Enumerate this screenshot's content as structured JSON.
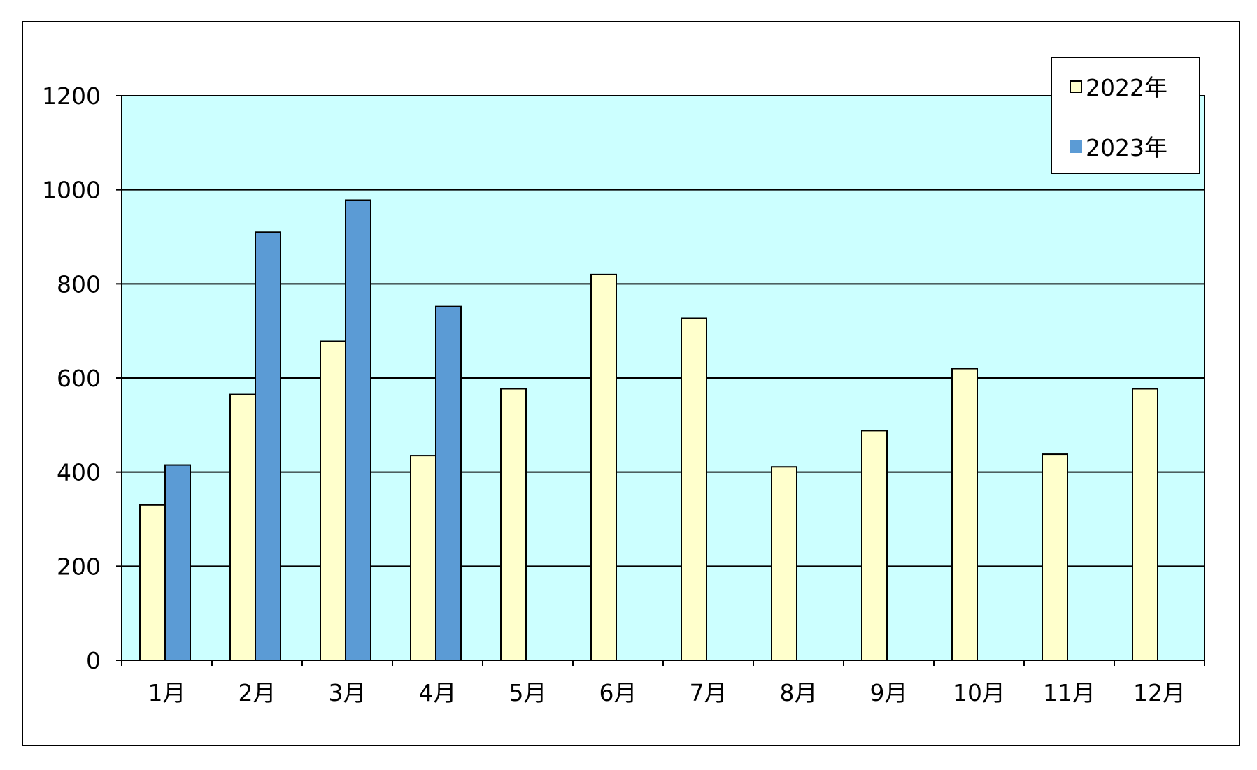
{
  "chart_data": {
    "type": "bar",
    "title": "",
    "xlabel": "",
    "ylabel": "",
    "categories": [
      "1月",
      "2月",
      "3月",
      "4月",
      "5月",
      "6月",
      "7月",
      "8月",
      "9月",
      "10月",
      "11月",
      "12月"
    ],
    "series": [
      {
        "name": "2022年",
        "color": "#ffffcc",
        "values": [
          330,
          565,
          678,
          435,
          577,
          820,
          727,
          411,
          488,
          620,
          438,
          577
        ]
      },
      {
        "name": "2023年",
        "color": "#5b9bd5",
        "values": [
          415,
          910,
          978,
          752,
          null,
          null,
          null,
          null,
          null,
          null,
          null,
          null
        ]
      }
    ],
    "ylim": [
      0,
      1200
    ],
    "yticks": [
      0,
      200,
      400,
      600,
      800,
      1000,
      1200
    ],
    "grid": true,
    "plot_background": "#ccffff",
    "legend_position": "top-right"
  }
}
